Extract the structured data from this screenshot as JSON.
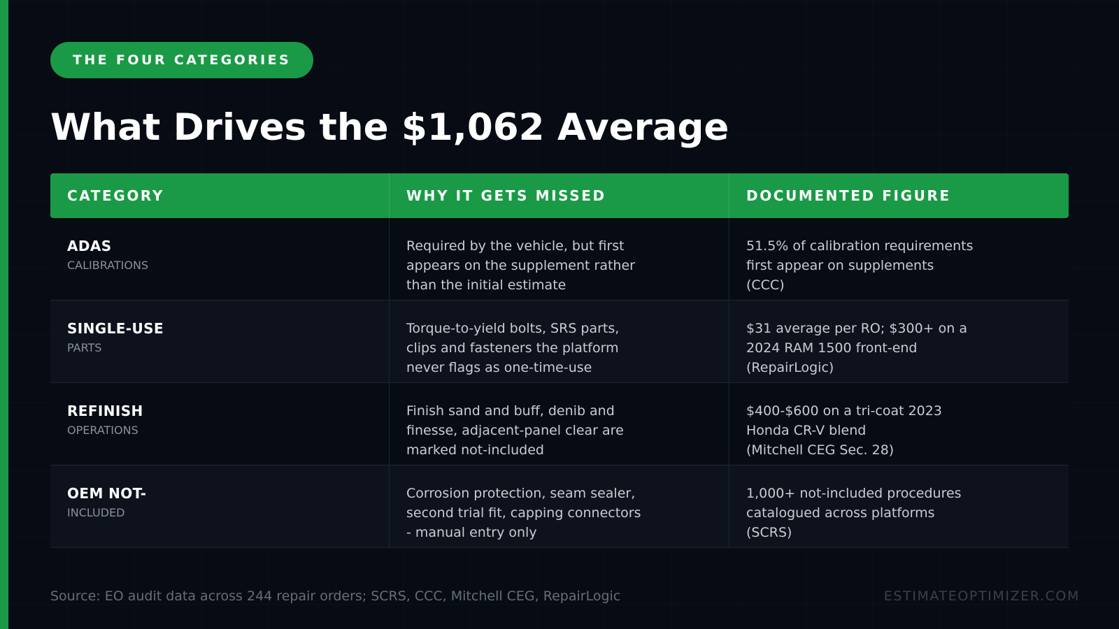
{
  "badge": "THE FOUR CATEGORIES",
  "title": "What Drives the $1,062 Average",
  "table": {
    "headers": [
      "CATEGORY",
      "WHY IT GETS MISSED",
      "DOCUMENTED FIGURE"
    ],
    "rows": [
      {
        "category": "ADAS",
        "sub": "CALIBRATIONS",
        "why": "Required by the vehicle, but first\nappears on the supplement rather\nthan the initial estimate",
        "figure": "51.5% of calibration requirements\nfirst appear on supplements\n(CCC)"
      },
      {
        "category": "SINGLE-USE",
        "sub": "PARTS",
        "why": "Torque-to-yield bolts, SRS parts,\nclips and fasteners the platform\nnever flags as one-time-use",
        "figure": "$31 average per RO; $300+ on a\n2024 RAM 1500 front-end\n(RepairLogic)"
      },
      {
        "category": "REFINISH",
        "sub": "OPERATIONS",
        "why": "Finish sand and buff, denib and\nfinesse, adjacent-panel clear are\nmarked not-included",
        "figure": "$400-$600 on a tri-coat 2023\nHonda CR-V blend\n(Mitchell CEG Sec. 28)"
      },
      {
        "category": "OEM NOT-",
        "sub": "INCLUDED",
        "why": "Corrosion protection, seam sealer,\nsecond trial fit, capping connectors\n- manual entry only",
        "figure": "1,000+ not-included procedures\ncatalogued across platforms\n(SCRS)"
      }
    ]
  },
  "footer": {
    "source": "Source: EO audit data across 244 repair orders; SCRS, CCC, Mitchell CEG, RepairLogic",
    "brand": "ESTIMATEOPTIMIZER.COM"
  },
  "colors": {
    "accent": "#1a9a47",
    "background": "#070b14"
  }
}
